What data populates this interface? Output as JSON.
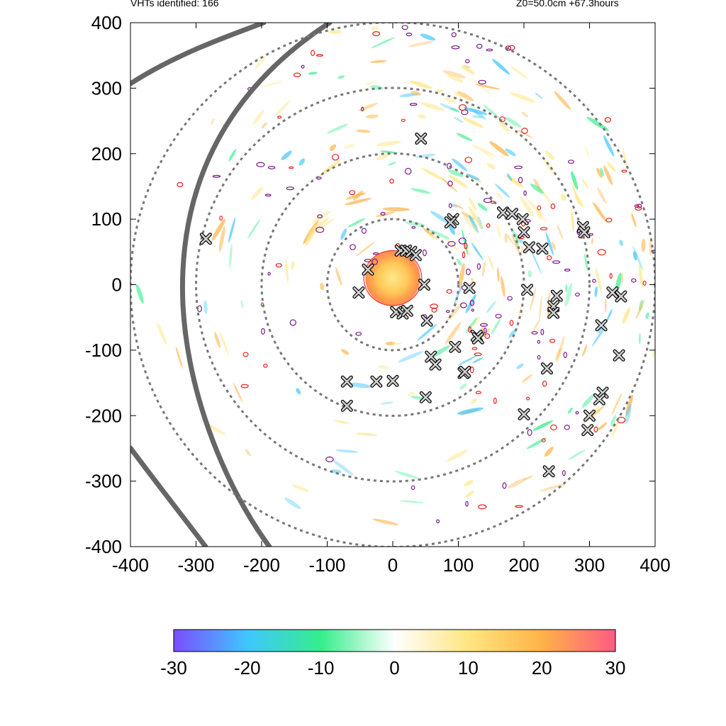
{
  "header": {
    "vht_label": "VHTs identified: 166",
    "info": "Z0=50.0cm  +67.3hours"
  },
  "colors": {
    "circle": "#777777",
    "track": "#666666",
    "contour_pos": "#e8201a",
    "contour_neg": "#7a1a8a",
    "marker_fill": "#cfcfcf",
    "marker_stroke": "#000000"
  },
  "colorbar": {
    "min": -30,
    "max": 30,
    "ticks": [
      "-30",
      "-20",
      "-10",
      "0",
      "10",
      "20",
      "30"
    ],
    "stops": [
      {
        "v": -30,
        "c": "#7b4dff"
      },
      {
        "v": -20,
        "c": "#3fc6ff"
      },
      {
        "v": -10,
        "c": "#35ee8c"
      },
      {
        "v": 0,
        "c": "#ffffff"
      },
      {
        "v": 10,
        "c": "#ffe680"
      },
      {
        "v": 20,
        "c": "#ffb347"
      },
      {
        "v": 30,
        "c": "#ff5c82"
      }
    ]
  },
  "chart_data": {
    "type": "scatter",
    "title": "",
    "xlabel": "",
    "ylabel": "",
    "xlim": [
      -400,
      400
    ],
    "ylim": [
      -400,
      400
    ],
    "x_ticks": [
      "-400",
      "-300",
      "-200",
      "-100",
      "0",
      "100",
      "200",
      "300",
      "400"
    ],
    "y_ticks": [
      "400",
      "300",
      "200",
      "100",
      "0",
      "-100",
      "-200",
      "-300",
      "-400"
    ],
    "range_rings_radius": [
      100,
      200,
      300,
      400
    ],
    "core": {
      "x": 0,
      "y": 10,
      "radius": 42,
      "value_peak": 20
    },
    "series": [
      {
        "marker": "x",
        "points": [
          [
            43,
            223
          ],
          [
            -285,
            70
          ],
          [
            92,
            100
          ],
          [
            88,
            95
          ],
          [
            168,
            110
          ],
          [
            182,
            108
          ],
          [
            198,
            100
          ],
          [
            200,
            80
          ],
          [
            208,
            57
          ],
          [
            228,
            55
          ],
          [
            290,
            88
          ],
          [
            292,
            80
          ],
          [
            12,
            52
          ],
          [
            20,
            52
          ],
          [
            28,
            50
          ],
          [
            35,
            45
          ],
          [
            -38,
            23
          ],
          [
            -52,
            -12
          ],
          [
            48,
            0
          ],
          [
            117,
            -5
          ],
          [
            205,
            -8
          ],
          [
            250,
            -17
          ],
          [
            245,
            -33
          ],
          [
            245,
            -43
          ],
          [
            335,
            -12
          ],
          [
            348,
            -18
          ],
          [
            318,
            -62
          ],
          [
            5,
            -42
          ],
          [
            15,
            -44
          ],
          [
            22,
            -40
          ],
          [
            52,
            -55
          ],
          [
            128,
            -78
          ],
          [
            130,
            -82
          ],
          [
            95,
            -95
          ],
          [
            58,
            -110
          ],
          [
            65,
            -122
          ],
          [
            108,
            -135
          ],
          [
            110,
            -133
          ],
          [
            235,
            -128
          ],
          [
            345,
            -108
          ],
          [
            -70,
            -148
          ],
          [
            -25,
            -148
          ],
          [
            0,
            -147
          ],
          [
            50,
            -172
          ],
          [
            -70,
            -185
          ],
          [
            320,
            -165
          ],
          [
            315,
            -175
          ],
          [
            300,
            -200
          ],
          [
            200,
            -198
          ],
          [
            297,
            -222
          ],
          [
            238,
            -285
          ]
        ]
      }
    ]
  }
}
